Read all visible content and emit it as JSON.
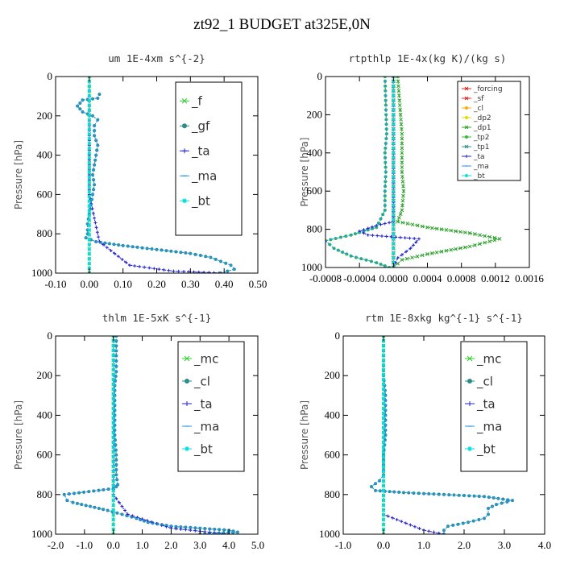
{
  "title": "zt92_1  BUDGET at325E,0N",
  "colors": {
    "green": "#2ecc2e",
    "red": "#e02020",
    "orange": "#ffaa00",
    "yellow": "#dddd00",
    "dkgreen": "#2aa02a",
    "medgreen": "#33bb33",
    "teal": "#2e8b8b",
    "blue": "#2222cc",
    "skyblue": "#2299ee",
    "cyan": "#00dddd"
  },
  "chart_data": [
    {
      "type": "line",
      "title": "um   1E-4xm s^{-2}",
      "ylabel": "Pressure [hPa]",
      "xlim": [
        -0.1,
        0.5
      ],
      "ylim": [
        1000,
        0
      ],
      "xticks": [
        "-0.10",
        "0.00",
        "0.10",
        "0.20",
        "0.30",
        "0.40",
        "0.50"
      ],
      "yticks": [
        "0",
        "200",
        "400",
        "600",
        "800",
        "1000"
      ],
      "legend_position": "top-right",
      "legend_font": 15,
      "series": [
        {
          "name": "_f",
          "color": "green",
          "x": [
            0,
            0
          ],
          "y": [
            0,
            1000
          ]
        },
        {
          "name": "_gf",
          "color": "teal",
          "x": [
            0.03,
            0.025,
            -0.02,
            -0.035,
            -0.02,
            0.01,
            0.025,
            0.015,
            0.015,
            0.025,
            0.02,
            0.015,
            0.01,
            0.015,
            0.01,
            0.005,
            0,
            -0.005,
            -0.005,
            -0.005,
            -0.01,
            0.02,
            0.1,
            0.2,
            0.3,
            0.36,
            0.39,
            0.42,
            0.43,
            0.41,
            0.39
          ],
          "y": [
            90,
            110,
            120,
            150,
            180,
            200,
            220,
            250,
            300,
            350,
            400,
            450,
            500,
            550,
            600,
            650,
            700,
            750,
            780,
            800,
            820,
            840,
            860,
            880,
            900,
            920,
            940,
            960,
            980,
            990,
            1000
          ]
        },
        {
          "name": "_ta",
          "color": "blue",
          "x": [
            0,
            0,
            0.03,
            0.12,
            0.25,
            0.4
          ],
          "y": [
            0,
            600,
            840,
            960,
            990,
            1000
          ]
        },
        {
          "name": "_ma",
          "color": "skyblue",
          "x": [
            0.03,
            0.025,
            -0.02,
            -0.035,
            -0.02,
            0.01,
            0.025,
            0.015,
            0.015,
            0.025,
            0.02,
            0.015,
            0.01,
            0.015,
            0.01,
            0.005,
            0,
            -0.005,
            -0.005,
            -0.005,
            -0.01,
            0.02,
            0.1,
            0.2,
            0.3,
            0.36,
            0.39,
            0.42,
            0.43,
            0.41,
            0.39
          ],
          "y": [
            90,
            110,
            120,
            150,
            180,
            200,
            220,
            250,
            300,
            350,
            400,
            450,
            500,
            550,
            600,
            650,
            700,
            750,
            780,
            800,
            820,
            840,
            860,
            880,
            900,
            920,
            940,
            960,
            980,
            990,
            1000
          ]
        },
        {
          "name": "_bt",
          "color": "cyan",
          "x": [
            0,
            0
          ],
          "y": [
            0,
            1000
          ]
        }
      ]
    },
    {
      "type": "line",
      "title": "rtpthlp   1E-4x(kg K)/(kg s)",
      "ylabel": "Pressure [hPa]",
      "xlim": [
        -0.0008,
        0.0016
      ],
      "ylim": [
        1000,
        0
      ],
      "xticks": [
        "-0.0008",
        "-0.0004",
        "0.0000",
        "0.0004",
        "0.0008",
        "0.0012",
        "0.0016"
      ],
      "yticks": [
        "0",
        "200",
        "400",
        "600",
        "800",
        "1000"
      ],
      "legend_position": "top-right",
      "legend_font": 9,
      "series": [
        {
          "name": "_forcing",
          "color": "red",
          "x": [
            0,
            0
          ],
          "y": [
            0,
            1000
          ]
        },
        {
          "name": "_sf",
          "color": "red",
          "x": [
            0,
            0
          ],
          "y": [
            0,
            1000
          ]
        },
        {
          "name": "_cl",
          "color": "orange",
          "x": [
            0,
            0
          ],
          "y": [
            0,
            1000
          ]
        },
        {
          "name": "_dp2",
          "color": "yellow",
          "x": [
            0,
            0
          ],
          "y": [
            0,
            1000
          ]
        },
        {
          "name": "_dp1",
          "color": "dkgreen",
          "x": [
            5e-05,
            0.0001,
            0.0001,
            0.0001,
            0.00012,
            0.0001,
            5e-05,
            0.0004,
            0.0009,
            0.00125,
            0.0009,
            0.0004,
            0.0001,
            0
          ],
          "y": [
            0,
            300,
            400,
            500,
            600,
            700,
            760,
            790,
            820,
            850,
            890,
            930,
            960,
            1000
          ]
        },
        {
          "name": "_tp2",
          "color": "medgreen",
          "x": [
            -0.0001,
            -8e-05,
            -0.0001,
            -9e-05,
            -0.0001,
            -0.0001,
            -0.0002,
            -0.0005,
            -0.0008,
            -0.0007,
            -0.0005,
            -0.0002,
            -5e-05
          ],
          "y": [
            0,
            300,
            400,
            500,
            600,
            700,
            790,
            830,
            860,
            900,
            940,
            975,
            1000
          ]
        },
        {
          "name": "_tp1",
          "color": "teal",
          "x": [
            0,
            0
          ],
          "y": [
            0,
            1000
          ]
        },
        {
          "name": "_ta",
          "color": "blue",
          "x": [
            0,
            0,
            -0.0002,
            -0.0004,
            -0.0003,
            0.0003,
            0.0002,
            5e-05,
            0
          ],
          "y": [
            0,
            760,
            780,
            810,
            830,
            850,
            900,
            950,
            1000
          ]
        },
        {
          "name": "_ma",
          "color": "skyblue",
          "x": [
            -0.0001,
            -8e-05,
            -0.0001,
            -9e-05,
            -0.0001,
            -0.0001,
            -0.0002,
            -0.0005,
            -0.0008,
            -0.0007,
            -0.0005,
            -0.0002,
            -5e-05
          ],
          "y": [
            0,
            300,
            400,
            500,
            600,
            700,
            790,
            830,
            860,
            900,
            940,
            975,
            1000
          ]
        },
        {
          "name": "_bt",
          "color": "cyan",
          "x": [
            0,
            0
          ],
          "y": [
            0,
            1000
          ]
        }
      ]
    },
    {
      "type": "line",
      "title": "thlm   1E-5xK s^{-1}",
      "ylabel": "Pressure [hPa]",
      "xlim": [
        -2.0,
        5.0
      ],
      "ylim": [
        1000,
        0
      ],
      "xticks": [
        "-2.0",
        "-1.0",
        "0.0",
        "1.0",
        "2.0",
        "3.0",
        "4.0",
        "5.0"
      ],
      "yticks": [
        "0",
        "200",
        "400",
        "600",
        "800",
        "1000"
      ],
      "legend_position": "top-right",
      "legend_font": 15,
      "series": [
        {
          "name": "_mc",
          "color": "green",
          "x": [
            0,
            0
          ],
          "y": [
            0,
            1000
          ]
        },
        {
          "name": "_cl",
          "color": "teal",
          "x": [
            0.1,
            0.1,
            0.1,
            0.05,
            0.05,
            0.05,
            0.05,
            0.1,
            0.1,
            0.15,
            0.1,
            0,
            -1.7,
            -1.6,
            -1.4,
            -0.8,
            -0.2,
            0.3,
            0.8,
            1.2,
            2.0,
            3.0,
            4.0,
            4.3,
            3.0
          ],
          "y": [
            0,
            100,
            180,
            250,
            300,
            400,
            500,
            600,
            700,
            750,
            760,
            770,
            800,
            830,
            840,
            860,
            880,
            900,
            920,
            940,
            960,
            970,
            980,
            990,
            1000
          ]
        },
        {
          "name": "_ta",
          "color": "blue",
          "x": [
            0,
            0,
            0.5,
            2.0,
            4.0
          ],
          "y": [
            0,
            800,
            900,
            970,
            1000
          ]
        },
        {
          "name": "_ma",
          "color": "skyblue",
          "x": [
            0.1,
            0.1,
            0.1,
            0.05,
            0.05,
            0.05,
            0.05,
            0.1,
            0.1,
            0.15,
            0.1,
            0,
            -1.7,
            -1.6,
            -1.4,
            -0.8,
            -0.2,
            0.3,
            0.8,
            1.2,
            2.0,
            3.0,
            4.0,
            4.3,
            3.0
          ],
          "y": [
            0,
            100,
            180,
            250,
            300,
            400,
            500,
            600,
            700,
            750,
            760,
            770,
            800,
            830,
            840,
            860,
            880,
            900,
            920,
            940,
            960,
            970,
            980,
            990,
            1000
          ]
        },
        {
          "name": "_bt",
          "color": "cyan",
          "x": [
            0,
            0
          ],
          "y": [
            0,
            1000
          ]
        }
      ]
    },
    {
      "type": "line",
      "title": "rtm   1E-8xkg kg^{-1} s^{-1}",
      "ylabel": "Pressure [hPa]",
      "xlim": [
        -1.0,
        4.0
      ],
      "ylim": [
        1000,
        0
      ],
      "xticks": [
        "-1.0",
        "0.0",
        "1.0",
        "2.0",
        "3.0",
        "4.0"
      ],
      "yticks": [
        "0",
        "200",
        "400",
        "600",
        "800",
        "1000"
      ],
      "legend_position": "top-right",
      "legend_font": 15,
      "series": [
        {
          "name": "_mc",
          "color": "green",
          "x": [
            0,
            0
          ],
          "y": [
            0,
            1000
          ]
        },
        {
          "name": "_cl",
          "color": "teal",
          "x": [
            0,
            0,
            0.05,
            0.05,
            0.05,
            0,
            0,
            -0.1,
            -0.3,
            -0.2,
            0.5,
            1.5,
            2.5,
            3.2,
            2.8,
            2.6,
            2.6,
            2.5,
            2.1,
            1.6,
            1.5,
            1.5
          ],
          "y": [
            0,
            200,
            300,
            400,
            500,
            600,
            700,
            730,
            760,
            780,
            790,
            800,
            810,
            830,
            850,
            870,
            900,
            920,
            940,
            960,
            980,
            1000
          ]
        },
        {
          "name": "_ta",
          "color": "blue",
          "x": [
            0,
            0,
            1.0,
            1.5
          ],
          "y": [
            0,
            900,
            980,
            1000
          ]
        },
        {
          "name": "_ma",
          "color": "skyblue",
          "x": [
            0,
            0,
            0.05,
            0.05,
            0.05,
            0,
            0,
            -0.1,
            -0.3,
            -0.2,
            0.5,
            1.5,
            2.5,
            3.2,
            2.8,
            2.6,
            2.6,
            2.5,
            2.1,
            1.6,
            1.5,
            1.5
          ],
          "y": [
            0,
            200,
            300,
            400,
            500,
            600,
            700,
            730,
            760,
            780,
            790,
            800,
            810,
            830,
            850,
            870,
            900,
            920,
            940,
            960,
            980,
            1000
          ]
        },
        {
          "name": "_bt",
          "color": "cyan",
          "x": [
            0,
            0
          ],
          "y": [
            0,
            1000
          ]
        }
      ]
    }
  ]
}
